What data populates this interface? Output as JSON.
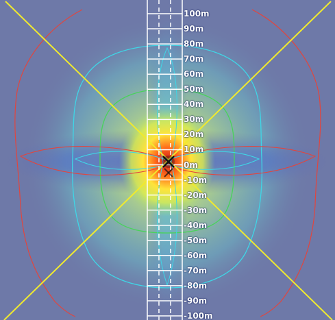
{
  "tool": {
    "view": "signal coverage heatmap",
    "icon": "marker-x-icon"
  },
  "colors": {
    "background": "#6e79a8",
    "contour_red": "#e2453e",
    "contour_cyan": "#3fd6e6",
    "contour_green": "#48d35a",
    "diagonal": "#f0ea2e",
    "lane_lines": "#ffffff",
    "label": "#ffffff"
  },
  "chart_data": {
    "type": "heatmap",
    "title": "",
    "xlabel": "",
    "ylabel": "",
    "ylim": [
      -100,
      100
    ],
    "y_unit": "m",
    "y_tick_labels": [
      "100m",
      "90m",
      "80m",
      "70m",
      "60m",
      "50m",
      "40m",
      "30m",
      "20m",
      "10m",
      "0m",
      "-10m",
      "-20m",
      "-30m",
      "-40m",
      "-50m",
      "-60m",
      "-70m",
      "-80m",
      "-90m",
      "-100m"
    ],
    "contour_levels": [
      "red",
      "cyan",
      "green"
    ],
    "grid": true
  }
}
